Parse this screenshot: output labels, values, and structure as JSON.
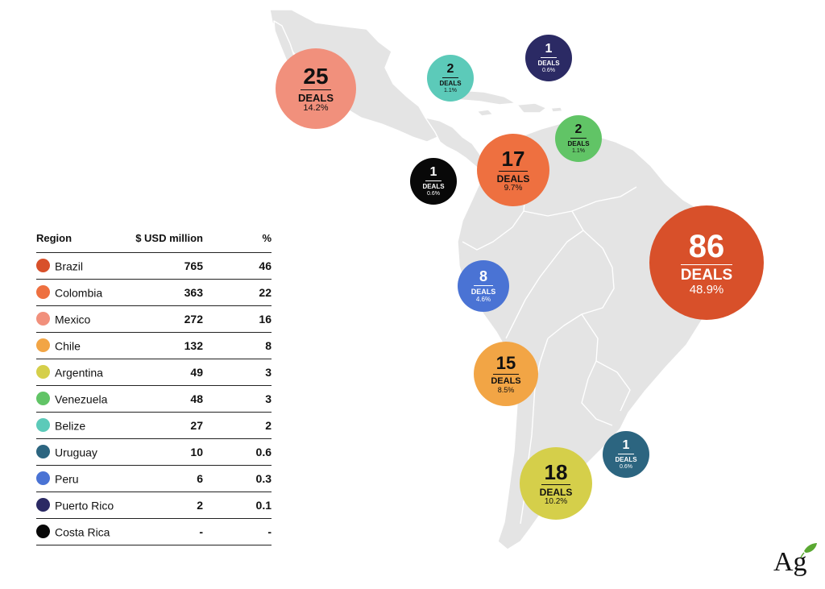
{
  "bubbles": [
    {
      "id": "brazil",
      "count": "86",
      "label": "DEALS",
      "pct": "48.9%",
      "color": "#d8502a"
    },
    {
      "id": "mexico",
      "count": "25",
      "label": "DEALS",
      "pct": "14.2%",
      "color": "#f1907c"
    },
    {
      "id": "argentina",
      "count": "18",
      "label": "DEALS",
      "pct": "10.2%",
      "color": "#d5cf4a"
    },
    {
      "id": "colombia",
      "count": "17",
      "label": "DEALS",
      "pct": "9.7%",
      "color": "#ee7040"
    },
    {
      "id": "chile",
      "count": "15",
      "label": "DEALS",
      "pct": "8.5%",
      "color": "#f2a545"
    },
    {
      "id": "peru",
      "count": "8",
      "label": "DEALS",
      "pct": "4.6%",
      "color": "#4a73d4"
    },
    {
      "id": "belize",
      "count": "2",
      "label": "DEALS",
      "pct": "1.1%",
      "color": "#5ccab9"
    },
    {
      "id": "venezuela",
      "count": "2",
      "label": "DEALS",
      "pct": "1.1%",
      "color": "#61c466"
    },
    {
      "id": "puerto-rico",
      "count": "1",
      "label": "DEALS",
      "pct": "0.6%",
      "color": "#2b2a64"
    },
    {
      "id": "costa-rica",
      "count": "1",
      "label": "DEALS",
      "pct": "0.6%",
      "color": "#080808"
    },
    {
      "id": "uruguay",
      "count": "1",
      "label": "DEALS",
      "pct": "0.6%",
      "color": "#2c6580"
    }
  ],
  "table": {
    "headers": {
      "region": "Region",
      "usd": "$ USD million",
      "pct": "%"
    },
    "rows": [
      {
        "region": "Brazil",
        "usd": "765",
        "pct": "46",
        "color": "#d8502a"
      },
      {
        "region": "Colombia",
        "usd": "363",
        "pct": "22",
        "color": "#ee7040"
      },
      {
        "region": "Mexico",
        "usd": "272",
        "pct": "16",
        "color": "#f1907c"
      },
      {
        "region": "Chile",
        "usd": "132",
        "pct": "8",
        "color": "#f2a545"
      },
      {
        "region": "Argentina",
        "usd": "49",
        "pct": "3",
        "color": "#d5cf4a"
      },
      {
        "region": "Venezuela",
        "usd": "48",
        "pct": "3",
        "color": "#61c466"
      },
      {
        "region": "Belize",
        "usd": "27",
        "pct": "2",
        "color": "#5ccab9"
      },
      {
        "region": "Uruguay",
        "usd": "10",
        "pct": "0.6",
        "color": "#2c6580"
      },
      {
        "region": "Peru",
        "usd": "6",
        "pct": "0.3",
        "color": "#4a73d4"
      },
      {
        "region": "Puerto Rico",
        "usd": "2",
        "pct": "0.1",
        "color": "#2b2a64"
      },
      {
        "region": "Costa Rica",
        "usd": "-",
        "pct": "-",
        "color": "#080808"
      }
    ]
  },
  "logo": {
    "text": "Ag",
    "leaf_color": "#5aa832"
  },
  "colors": {
    "land": "#e4e4e4",
    "border": "#ffffff"
  }
}
